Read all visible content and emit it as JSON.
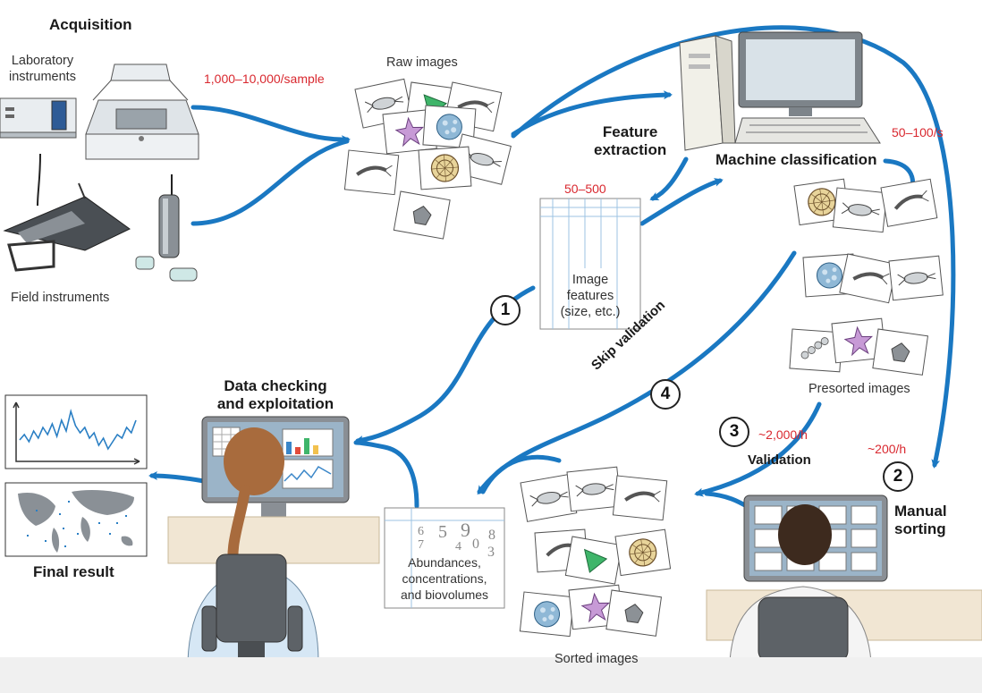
{
  "labels": {
    "acquisition": "Acquisition",
    "lab_instruments": "Laboratory\ninstruments",
    "field_instruments": "Field instruments",
    "rate_sample": "1,000–10,000/sample",
    "raw_images": "Raw images",
    "feature_extraction": "Feature\nextraction",
    "machine_classification": "Machine classification",
    "rate_class": "50–100/s",
    "features_count": "50–500",
    "image_features": "Image\nfeatures\n(size, etc.)",
    "presorted_images": "Presorted images",
    "skip_validation": "Skip validation",
    "rate_validation": "~2,000/h",
    "validation": "Validation",
    "rate_manual": "~200/h",
    "manual_sorting": "Manual\nsorting",
    "data_checking": "Data checking\nand exploitation",
    "final_result": "Final result",
    "abundances": "Abundances,\nconcentrations,\nand biovolumes",
    "sorted_images": "Sorted images"
  },
  "steps": [
    "1",
    "2",
    "3",
    "4"
  ],
  "abundance_digits": [
    "6",
    "7",
    "5",
    "9",
    "4",
    "0",
    "8",
    "3"
  ],
  "colors": {
    "arrow": "#1a78c2",
    "rate_text": "#d9282f",
    "screen": "#9bb4c8",
    "monitor_frame": "#8a8f95"
  },
  "icons": [
    "scanner-icon",
    "laboratory-instrument-icon",
    "field-towed-instrument-icon",
    "field-profiler-instrument-icon",
    "computer-tower-icon",
    "computer-monitor-icon",
    "keyboard-icon",
    "scientist-person-icon",
    "sorter-person-icon",
    "line-chart-icon",
    "world-map-icon"
  ]
}
